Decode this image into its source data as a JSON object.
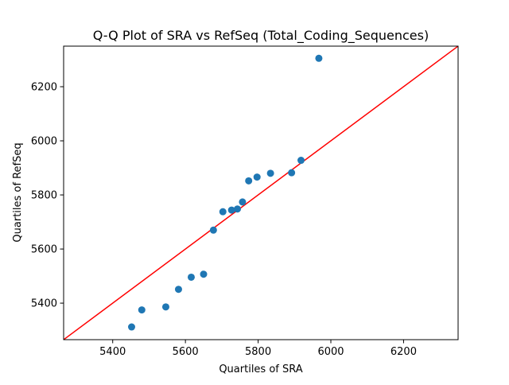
{
  "chart_data": {
    "type": "scatter",
    "title": "Q-Q Plot of SRA vs RefSeq (Total_Coding_Sequences)",
    "xlabel": "Quartiles of SRA",
    "ylabel": "Quartiles of RefSeq",
    "xlim": [
      5265,
      6350
    ],
    "ylim": [
      5265,
      6350
    ],
    "xticks": [
      5400,
      5600,
      5800,
      6000,
      6200
    ],
    "yticks": [
      5400,
      5600,
      5800,
      6000,
      6200
    ],
    "grid": false,
    "legend": "none",
    "series": [
      {
        "color": "#1f77b4",
        "points": [
          {
            "x": 5452,
            "y": 5312
          },
          {
            "x": 5480,
            "y": 5375
          },
          {
            "x": 5546,
            "y": 5386
          },
          {
            "x": 5581,
            "y": 5451
          },
          {
            "x": 5616,
            "y": 5496
          },
          {
            "x": 5650,
            "y": 5507
          },
          {
            "x": 5677,
            "y": 5670
          },
          {
            "x": 5703,
            "y": 5738
          },
          {
            "x": 5727,
            "y": 5744
          },
          {
            "x": 5743,
            "y": 5748
          },
          {
            "x": 5757,
            "y": 5774
          },
          {
            "x": 5774,
            "y": 5852
          },
          {
            "x": 5797,
            "y": 5866
          },
          {
            "x": 5834,
            "y": 5880
          },
          {
            "x": 5892,
            "y": 5882
          },
          {
            "x": 5918,
            "y": 5928
          },
          {
            "x": 5967,
            "y": 6305
          }
        ]
      }
    ],
    "reference_line": {
      "type": "y=x",
      "color": "#ff0000"
    }
  }
}
